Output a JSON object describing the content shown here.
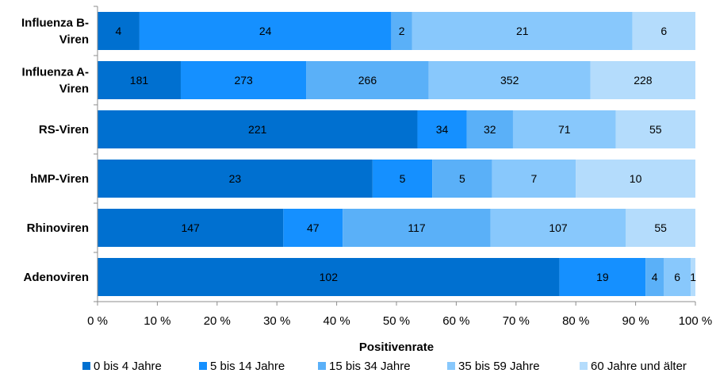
{
  "chart_data": {
    "type": "bar",
    "orientation": "horizontal",
    "stacked": true,
    "normalized": true,
    "categories": [
      "Influenza B-Viren",
      "Influenza A-Viren",
      "RS-Viren",
      "hMP-Viren",
      "Rhinoviren",
      "Adenoviren"
    ],
    "category_lines": [
      [
        "Influenza B-",
        "Viren"
      ],
      [
        "Influenza A-",
        "Viren"
      ],
      [
        "RS-Viren"
      ],
      [
        "hMP-Viren"
      ],
      [
        "Rhinoviren"
      ],
      [
        "Adenoviren"
      ]
    ],
    "series": [
      {
        "name": "0 bis 4 Jahre",
        "color": "#0070d0",
        "values": [
          4,
          181,
          221,
          23,
          147,
          102
        ]
      },
      {
        "name": "5 bis 14 Jahre",
        "color": "#1590ff",
        "values": [
          24,
          273,
          34,
          5,
          47,
          19
        ]
      },
      {
        "name": "15 bis 34 Jahre",
        "color": "#5ab0f8",
        "values": [
          2,
          266,
          32,
          5,
          117,
          4
        ]
      },
      {
        "name": "35 bis 59 Jahre",
        "color": "#88c8fc",
        "values": [
          21,
          352,
          71,
          7,
          107,
          6
        ]
      },
      {
        "name": "60 Jahre und älter",
        "color": "#b4dcfc",
        "values": [
          6,
          228,
          55,
          10,
          55,
          1
        ]
      }
    ],
    "x_ticks": [
      "0 %",
      "10 %",
      "20 %",
      "30 %",
      "40 %",
      "50 %",
      "60 %",
      "70 %",
      "80 %",
      "90 %",
      "100 %"
    ],
    "xlim": [
      0,
      100
    ],
    "xlabel": "Positivenrate",
    "legend_position": "bottom",
    "grid": false
  }
}
